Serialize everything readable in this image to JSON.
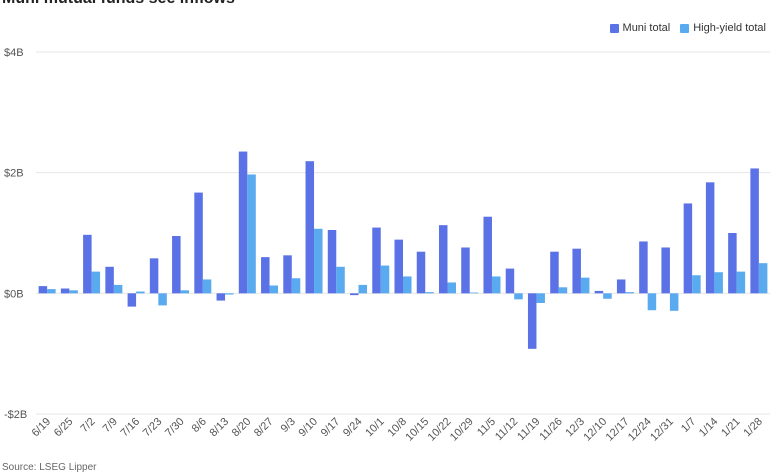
{
  "chart_data": {
    "type": "bar",
    "title": "Muni mutual funds see inflows",
    "categories": [
      "6/19",
      "6/25",
      "7/2",
      "7/9",
      "7/16",
      "7/23",
      "7/30",
      "8/6",
      "8/13",
      "8/20",
      "8/27",
      "9/3",
      "9/10",
      "9/17",
      "9/24",
      "10/1",
      "10/8",
      "10/15",
      "10/22",
      "10/29",
      "11/5",
      "11/12",
      "11/19",
      "11/26",
      "12/3",
      "12/10",
      "12/17",
      "12/24",
      "12/31",
      "1/7",
      "1/14",
      "1/21",
      "1/28"
    ],
    "series": [
      {
        "name": "Muni total",
        "color": "#5b72e6",
        "values": [
          0.12,
          0.08,
          0.97,
          0.44,
          -0.22,
          0.58,
          0.95,
          1.67,
          -0.12,
          2.35,
          0.6,
          0.63,
          2.19,
          1.05,
          -0.03,
          1.09,
          0.89,
          0.69,
          1.13,
          0.76,
          1.27,
          0.41,
          -0.92,
          0.69,
          0.74,
          0.04,
          0.23,
          0.86,
          0.76,
          1.49,
          1.84,
          1.0,
          2.07
        ]
      },
      {
        "name": "High-yield total",
        "color": "#5aaaf0",
        "values": [
          0.07,
          0.05,
          0.36,
          0.14,
          0.03,
          -0.2,
          0.05,
          0.23,
          -0.02,
          1.97,
          0.13,
          0.25,
          1.07,
          0.44,
          0.14,
          0.46,
          0.28,
          0.02,
          0.18,
          0.0,
          0.28,
          -0.1,
          -0.16,
          0.1,
          0.26,
          -0.09,
          0.02,
          -0.28,
          -0.29,
          0.3,
          0.35,
          0.36,
          0.5
        ]
      }
    ],
    "ylim": [
      -2,
      4
    ],
    "yticks": [
      -2,
      0,
      2,
      4
    ],
    "ytick_labels": [
      "-$2B",
      "$0B",
      "$2B",
      "$4B"
    ],
    "legend_position": "top-right",
    "grid": true,
    "source": "Source: LSEG Lipper"
  }
}
